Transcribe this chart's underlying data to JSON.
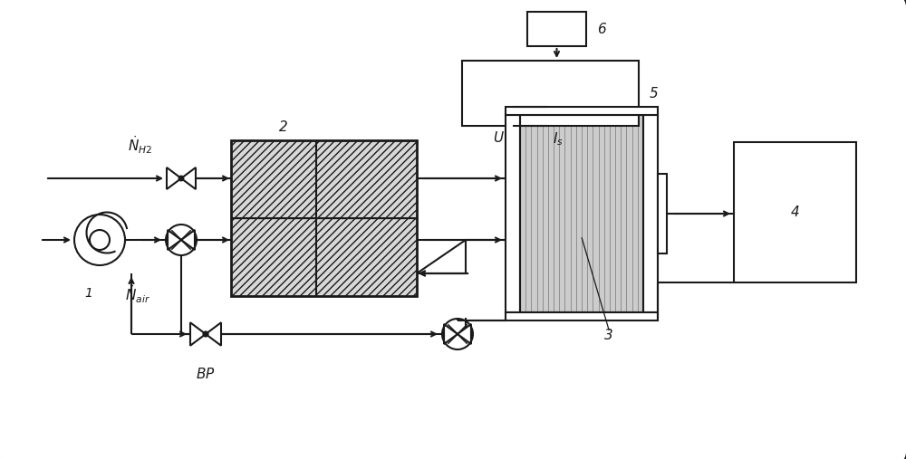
{
  "bg_color": "#ffffff",
  "line_color": "#1a1a1a",
  "fill_light": "#ffffff",
  "fill_hatch": "#e8e8e8",
  "fig_bg": "#c8c8c8"
}
